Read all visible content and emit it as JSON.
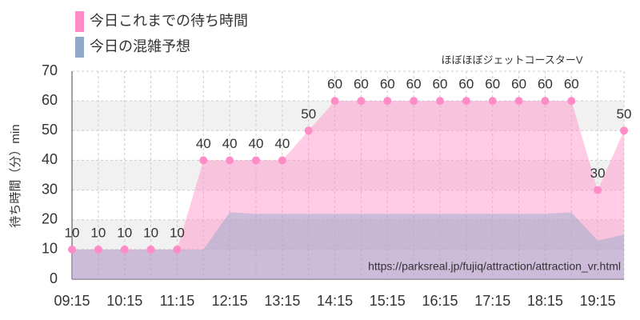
{
  "chart_data": {
    "type": "area",
    "subtitle": "ほぼほぼジェットコースターV",
    "y_label": "待ち時間（分）min",
    "annotation": "https://parksreal.jp/fujiq/attraction/attraction_vr.html",
    "categories": [
      "09:15",
      null,
      "10:15",
      null,
      "11:15",
      null,
      "12:15",
      null,
      "13:15",
      null,
      "14:15",
      null,
      "15:15",
      null,
      "16:15",
      null,
      "17:15",
      null,
      "18:15",
      null,
      "19:15",
      null
    ],
    "series": [
      {
        "name": "今日これまでの待ち時間",
        "color": "#ff8cc6",
        "values": [
          10,
          10,
          10,
          10,
          10,
          40,
          40,
          40,
          40,
          50,
          60,
          60,
          60,
          60,
          60,
          60,
          60,
          60,
          60,
          60,
          30,
          50
        ]
      },
      {
        "name": "今日の混雑予想",
        "color": "#8fa9c9",
        "values": [
          10,
          10,
          10,
          10,
          10,
          10,
          22.5,
          22,
          22,
          22,
          22,
          22,
          22,
          22,
          22,
          22,
          22,
          22,
          22,
          22.5,
          13,
          15
        ]
      }
    ],
    "ylim": [
      0,
      70
    ],
    "yticks": [
      0,
      10,
      20,
      30,
      40,
      50,
      60,
      70
    ],
    "grid": true
  }
}
